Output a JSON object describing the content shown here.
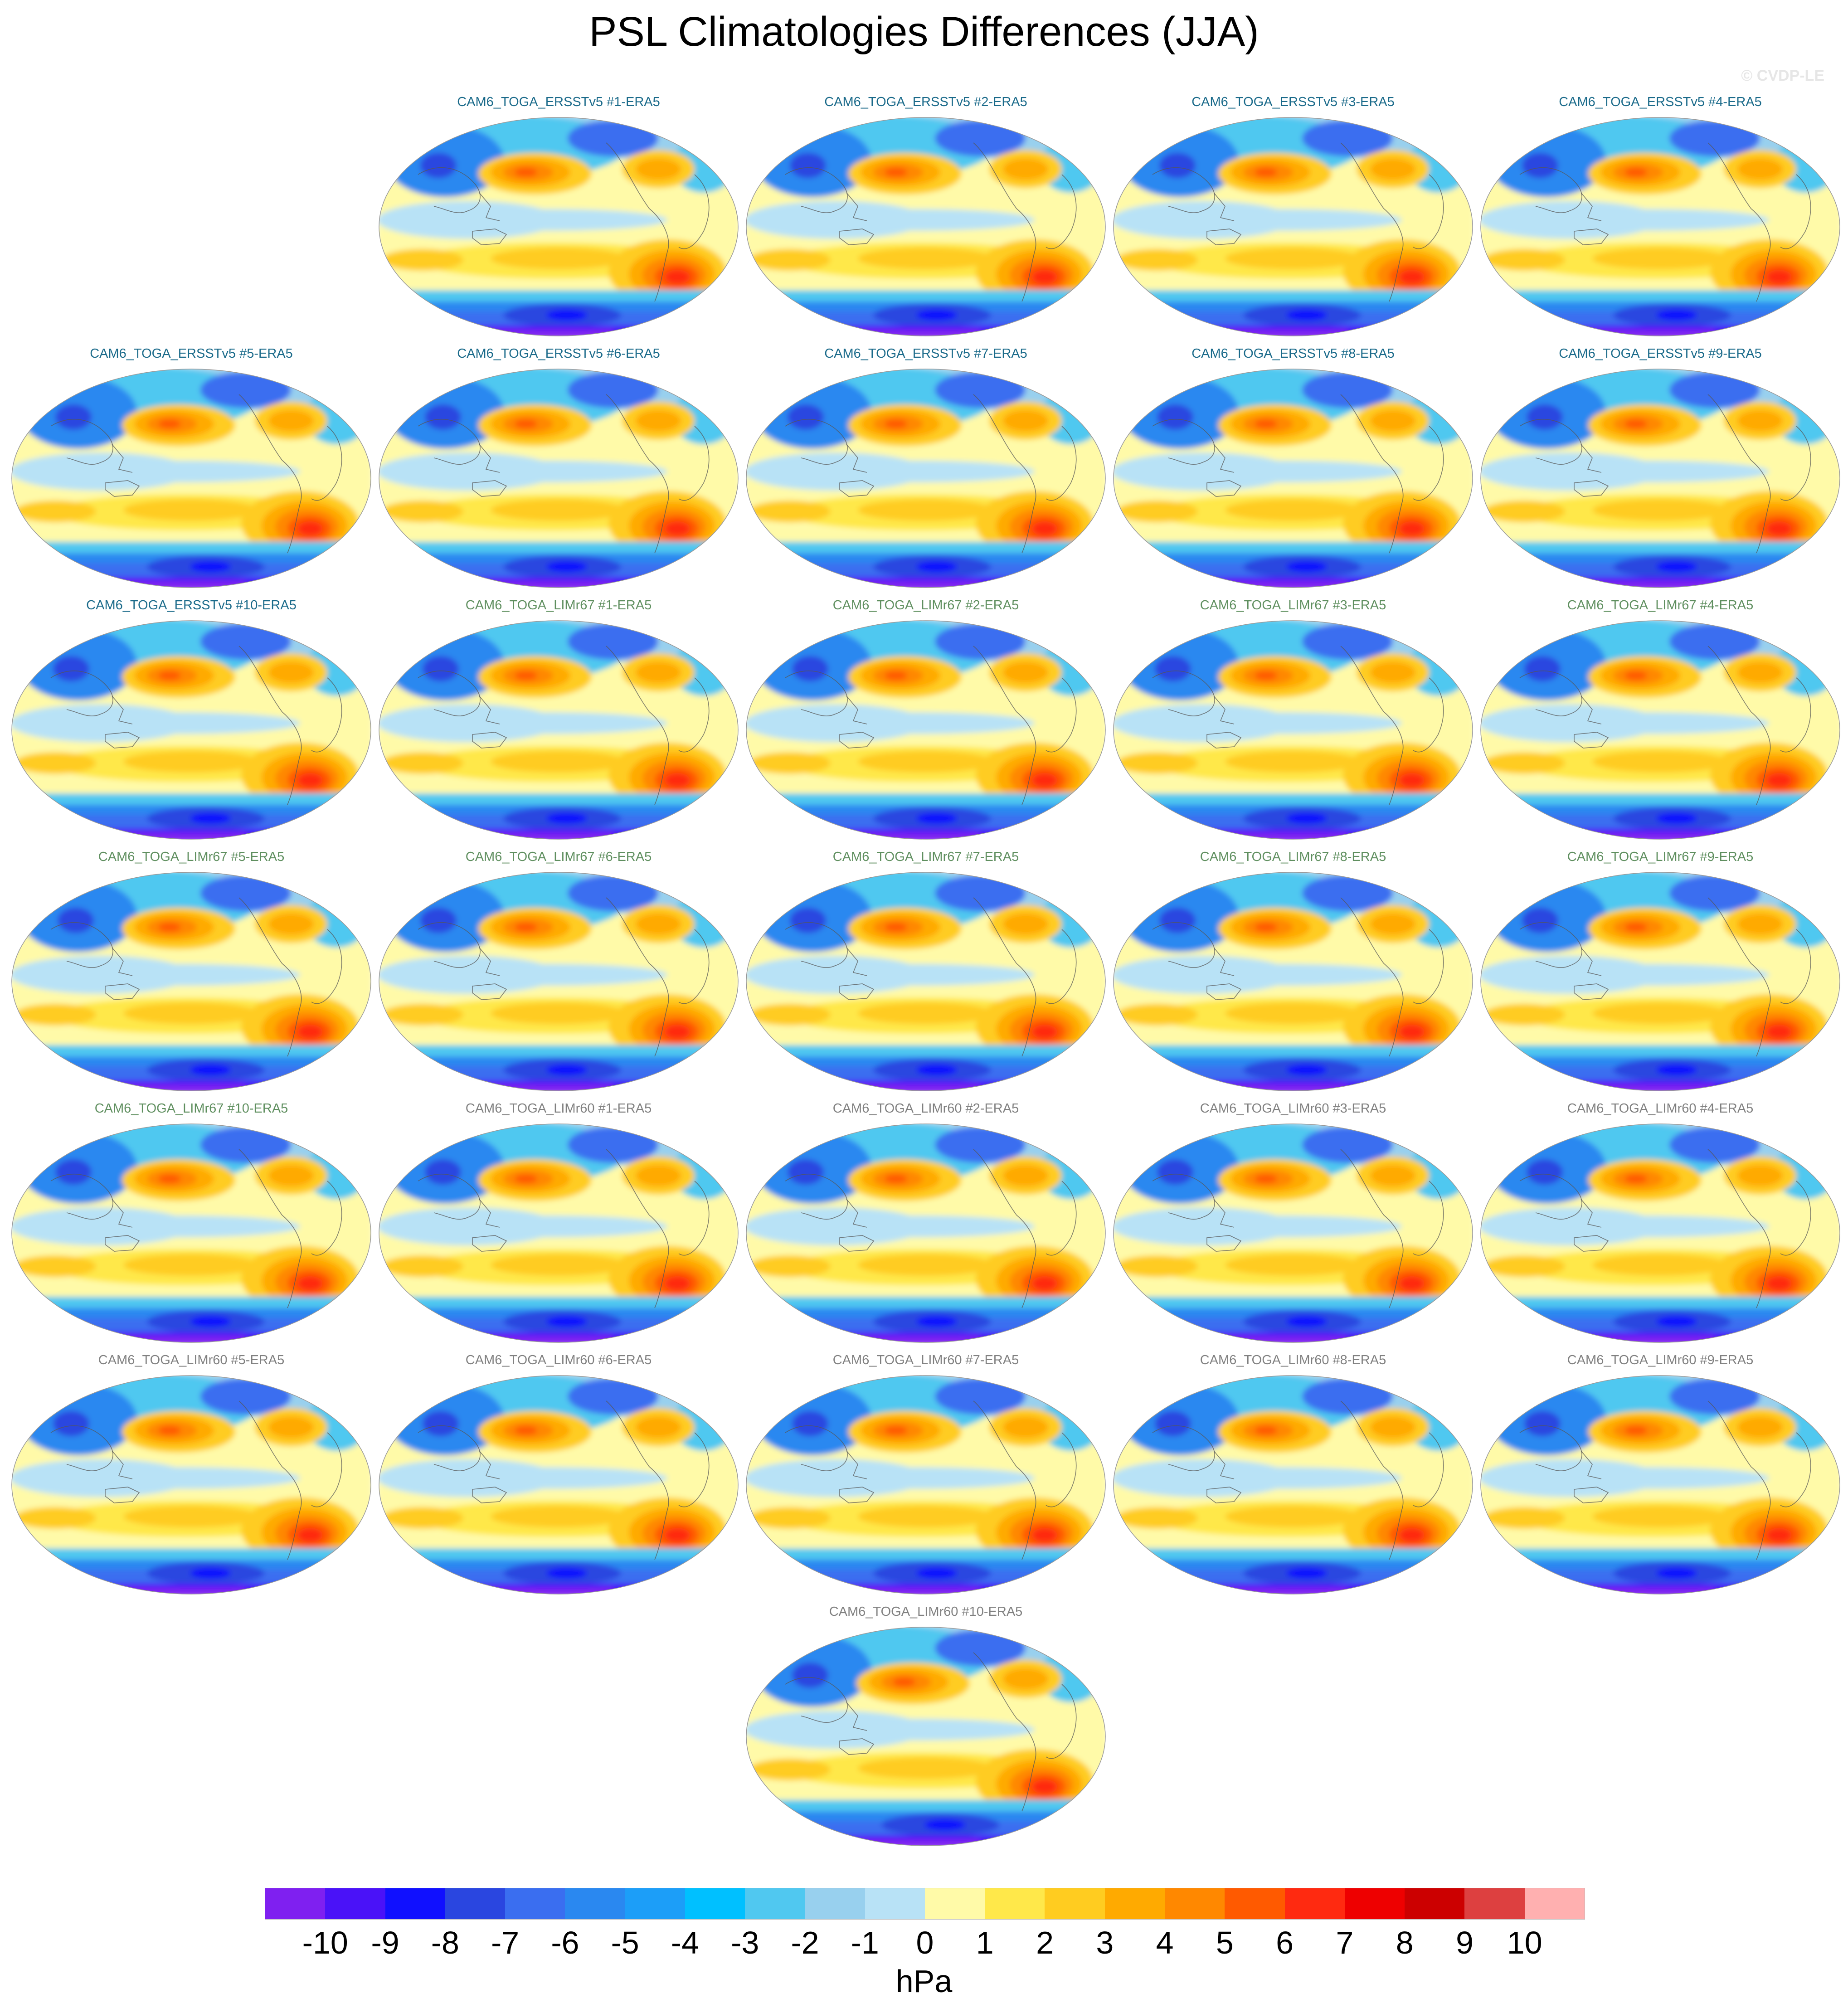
{
  "title": "PSL Climatologies Differences (JJA)",
  "copyright": "© CVDP-LE",
  "units": "hPa",
  "colors": {
    "ersst_title": "#1a6a8a",
    "limr67_title": "#5f8f5f",
    "limr60_title": "#808080"
  },
  "colorbar": {
    "colors": [
      "#7f20f0",
      "#4a12f8",
      "#1010ff",
      "#2a46e0",
      "#3a6ef0",
      "#2a88f0",
      "#1c9ef8",
      "#00c0ff",
      "#50c8f0",
      "#98d0ee",
      "#b8e2f6",
      "#fffaa8",
      "#ffe84a",
      "#ffcc20",
      "#ffaa00",
      "#ff8800",
      "#ff5a00",
      "#ff2a10",
      "#ee0000",
      "#cc0000",
      "#dd4040",
      "#ffb0b0"
    ],
    "ticks": [
      "-10",
      "-9",
      "-8",
      "-7",
      "-6",
      "-5",
      "-4",
      "-3",
      "-2",
      "-1",
      "0",
      "1",
      "2",
      "3",
      "4",
      "5",
      "6",
      "7",
      "8",
      "9",
      "10"
    ]
  },
  "panels": [
    {
      "title": "CAM6_TOGA_ERSSTv5 #1-ERA5",
      "group": "ersst"
    },
    {
      "title": "CAM6_TOGA_ERSSTv5 #2-ERA5",
      "group": "ersst"
    },
    {
      "title": "CAM6_TOGA_ERSSTv5 #3-ERA5",
      "group": "ersst"
    },
    {
      "title": "CAM6_TOGA_ERSSTv5 #4-ERA5",
      "group": "ersst"
    },
    {
      "title": "CAM6_TOGA_ERSSTv5 #5-ERA5",
      "group": "ersst"
    },
    {
      "title": "CAM6_TOGA_ERSSTv5 #6-ERA5",
      "group": "ersst"
    },
    {
      "title": "CAM6_TOGA_ERSSTv5 #7-ERA5",
      "group": "ersst"
    },
    {
      "title": "CAM6_TOGA_ERSSTv5 #8-ERA5",
      "group": "ersst"
    },
    {
      "title": "CAM6_TOGA_ERSSTv5 #9-ERA5",
      "group": "ersst"
    },
    {
      "title": "CAM6_TOGA_ERSSTv5 #10-ERA5",
      "group": "ersst"
    },
    {
      "title": "CAM6_TOGA_LIMr67 #1-ERA5",
      "group": "limr67"
    },
    {
      "title": "CAM6_TOGA_LIMr67 #2-ERA5",
      "group": "limr67"
    },
    {
      "title": "CAM6_TOGA_LIMr67 #3-ERA5",
      "group": "limr67"
    },
    {
      "title": "CAM6_TOGA_LIMr67 #4-ERA5",
      "group": "limr67"
    },
    {
      "title": "CAM6_TOGA_LIMr67 #5-ERA5",
      "group": "limr67"
    },
    {
      "title": "CAM6_TOGA_LIMr67 #6-ERA5",
      "group": "limr67"
    },
    {
      "title": "CAM6_TOGA_LIMr67 #7-ERA5",
      "group": "limr67"
    },
    {
      "title": "CAM6_TOGA_LIMr67 #8-ERA5",
      "group": "limr67"
    },
    {
      "title": "CAM6_TOGA_LIMr67 #9-ERA5",
      "group": "limr67"
    },
    {
      "title": "CAM6_TOGA_LIMr67 #10-ERA5",
      "group": "limr67"
    },
    {
      "title": "CAM6_TOGA_LIMr60 #1-ERA5",
      "group": "limr60"
    },
    {
      "title": "CAM6_TOGA_LIMr60 #2-ERA5",
      "group": "limr60"
    },
    {
      "title": "CAM6_TOGA_LIMr60 #3-ERA5",
      "group": "limr60"
    },
    {
      "title": "CAM6_TOGA_LIMr60 #4-ERA5",
      "group": "limr60"
    },
    {
      "title": "CAM6_TOGA_LIMr60 #5-ERA5",
      "group": "limr60"
    },
    {
      "title": "CAM6_TOGA_LIMr60 #6-ERA5",
      "group": "limr60"
    },
    {
      "title": "CAM6_TOGA_LIMr60 #7-ERA5",
      "group": "limr60"
    },
    {
      "title": "CAM6_TOGA_LIMr60 #8-ERA5",
      "group": "limr60"
    },
    {
      "title": "CAM6_TOGA_LIMr60 #9-ERA5",
      "group": "limr60"
    },
    {
      "title": "CAM6_TOGA_LIMr60 #10-ERA5",
      "group": "limr60"
    }
  ]
}
